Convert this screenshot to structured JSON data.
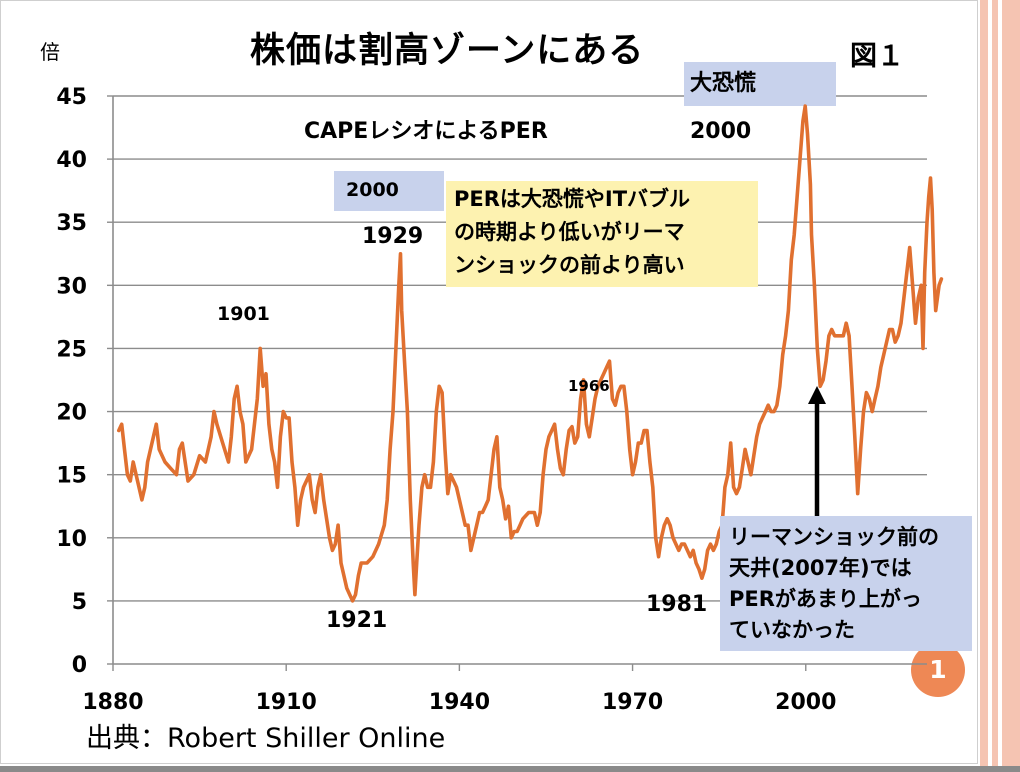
{
  "slide": {
    "title": "株価は割高ゾーンにある",
    "figure_label": "図１",
    "unit_label": "倍",
    "source": "出典：Robert Shiller Online",
    "page_number": "1",
    "colors": {
      "line": "#e07030",
      "callout_blue": "#c8d2ec",
      "callout_yellow": "#fdf2b0",
      "page_badge": "#ee8855",
      "accent_stripe": "#f5c4b2"
    }
  },
  "chart_data": {
    "type": "line",
    "title": "CAPEレシオによるPER",
    "xlabel": "",
    "ylabel": "倍",
    "xlim": [
      1880,
      2021
    ],
    "ylim": [
      0,
      45
    ],
    "x_ticks": [
      {
        "value": 1880,
        "label": "1880"
      },
      {
        "value": 1910,
        "label": "1910"
      },
      {
        "value": 1940,
        "label": "1940"
      },
      {
        "value": 1970,
        "label": "1970"
      },
      {
        "value": 2000,
        "label": "2000"
      }
    ],
    "y_ticks": [
      {
        "value": 0,
        "label": "0"
      },
      {
        "value": 5,
        "label": "5"
      },
      {
        "value": 10,
        "label": "10"
      },
      {
        "value": 15,
        "label": "15"
      },
      {
        "value": 20,
        "label": "20"
      },
      {
        "value": 25,
        "label": "25"
      },
      {
        "value": 30,
        "label": "30"
      },
      {
        "value": 35,
        "label": "35"
      },
      {
        "value": 40,
        "label": "40"
      },
      {
        "value": 45,
        "label": "45"
      }
    ],
    "grid": true,
    "series": [
      {
        "color": "#e07030",
        "points": [
          [
            1881,
            18.5
          ],
          [
            1881.5,
            19
          ],
          [
            1882,
            17
          ],
          [
            1882.5,
            15
          ],
          [
            1883,
            14.5
          ],
          [
            1883.5,
            16
          ],
          [
            1884,
            15
          ],
          [
            1885,
            13
          ],
          [
            1885.5,
            14
          ],
          [
            1886,
            16
          ],
          [
            1887,
            18
          ],
          [
            1887.5,
            19
          ],
          [
            1888,
            17
          ],
          [
            1889,
            16
          ],
          [
            1890,
            15.5
          ],
          [
            1891,
            15
          ],
          [
            1891.5,
            17
          ],
          [
            1892,
            17.5
          ],
          [
            1893,
            14.5
          ],
          [
            1894,
            15
          ],
          [
            1895,
            16.5
          ],
          [
            1896,
            16
          ],
          [
            1897,
            18
          ],
          [
            1897.5,
            20
          ],
          [
            1898,
            19
          ],
          [
            1899,
            17.5
          ],
          [
            1900,
            16
          ],
          [
            1900.5,
            18
          ],
          [
            1901,
            21
          ],
          [
            1901.5,
            22
          ],
          [
            1902,
            20
          ],
          [
            1902.5,
            19
          ],
          [
            1903,
            16
          ],
          [
            1904,
            17
          ],
          [
            1905,
            21
          ],
          [
            1905.5,
            25
          ],
          [
            1906,
            22
          ],
          [
            1906.5,
            23
          ],
          [
            1907,
            19
          ],
          [
            1907.5,
            17
          ],
          [
            1908,
            16
          ],
          [
            1908.5,
            14
          ],
          [
            1909,
            18
          ],
          [
            1909.5,
            20
          ],
          [
            1910,
            19.5
          ],
          [
            1910.5,
            19.5
          ],
          [
            1911,
            16
          ],
          [
            1911.5,
            14
          ],
          [
            1912,
            11
          ],
          [
            1912.5,
            13
          ],
          [
            1913,
            14
          ],
          [
            1913.5,
            14.5
          ],
          [
            1914,
            15
          ],
          [
            1914.5,
            13
          ],
          [
            1915,
            12
          ],
          [
            1915.5,
            14
          ],
          [
            1916,
            15
          ],
          [
            1916.5,
            13
          ],
          [
            1917,
            11.5
          ],
          [
            1917.5,
            10
          ],
          [
            1918,
            9
          ],
          [
            1918.5,
            9.5
          ],
          [
            1919,
            11
          ],
          [
            1919.5,
            8
          ],
          [
            1920,
            7
          ],
          [
            1920.5,
            6
          ],
          [
            1921,
            5.5
          ],
          [
            1921.5,
            5
          ],
          [
            1922,
            5.5
          ],
          [
            1922.5,
            7
          ],
          [
            1923,
            8
          ],
          [
            1924,
            8
          ],
          [
            1925,
            8.5
          ],
          [
            1926,
            9.5
          ],
          [
            1927,
            11
          ],
          [
            1927.5,
            13
          ],
          [
            1928,
            17
          ],
          [
            1928.5,
            20
          ],
          [
            1929,
            25
          ],
          [
            1929.5,
            30
          ],
          [
            1929.8,
            32.5
          ],
          [
            1930,
            28
          ],
          [
            1930.5,
            24
          ],
          [
            1931,
            20
          ],
          [
            1931.5,
            13
          ],
          [
            1932,
            8
          ],
          [
            1932.3,
            5.5
          ],
          [
            1932.6,
            8
          ],
          [
            1933,
            11
          ],
          [
            1933.5,
            14
          ],
          [
            1934,
            15
          ],
          [
            1934.5,
            14
          ],
          [
            1935,
            14
          ],
          [
            1935.5,
            16
          ],
          [
            1936,
            20
          ],
          [
            1936.5,
            22
          ],
          [
            1937,
            21.5
          ],
          [
            1937.5,
            17
          ],
          [
            1938,
            13.5
          ],
          [
            1938.5,
            15
          ],
          [
            1939,
            14.5
          ],
          [
            1939.5,
            14
          ],
          [
            1940,
            13
          ],
          [
            1940.5,
            12
          ],
          [
            1941,
            11
          ],
          [
            1941.5,
            11
          ],
          [
            1942,
            9
          ],
          [
            1942.5,
            10
          ],
          [
            1943,
            11
          ],
          [
            1943.5,
            12
          ],
          [
            1944,
            12
          ],
          [
            1944.5,
            12.5
          ],
          [
            1945,
            13
          ],
          [
            1945.5,
            15
          ],
          [
            1946,
            17
          ],
          [
            1946.5,
            18
          ],
          [
            1947,
            14
          ],
          [
            1947.5,
            13
          ],
          [
            1948,
            11.5
          ],
          [
            1948.5,
            12.5
          ],
          [
            1949,
            10
          ],
          [
            1949.5,
            10.5
          ],
          [
            1950,
            10.5
          ],
          [
            1950.5,
            11
          ],
          [
            1951,
            11.5
          ],
          [
            1952,
            12
          ],
          [
            1953,
            12
          ],
          [
            1953.5,
            11
          ],
          [
            1954,
            12
          ],
          [
            1954.5,
            15
          ],
          [
            1955,
            17
          ],
          [
            1955.5,
            18
          ],
          [
            1956,
            18.5
          ],
          [
            1956.5,
            19
          ],
          [
            1957,
            17
          ],
          [
            1957.5,
            15.5
          ],
          [
            1958,
            15
          ],
          [
            1958.5,
            17
          ],
          [
            1959,
            18.5
          ],
          [
            1959.5,
            18.8
          ],
          [
            1960,
            17.5
          ],
          [
            1960.5,
            18
          ],
          [
            1961,
            21
          ],
          [
            1961.5,
            22.5
          ],
          [
            1962,
            19
          ],
          [
            1962.5,
            18
          ],
          [
            1963,
            19.5
          ],
          [
            1963.5,
            21
          ],
          [
            1964,
            22
          ],
          [
            1964.5,
            22.5
          ],
          [
            1965,
            23
          ],
          [
            1965.5,
            23.5
          ],
          [
            1966,
            24
          ],
          [
            1966.5,
            21
          ],
          [
            1967,
            20.5
          ],
          [
            1967.5,
            21.5
          ],
          [
            1968,
            22
          ],
          [
            1968.5,
            22
          ],
          [
            1969,
            20
          ],
          [
            1969.5,
            17
          ],
          [
            1970,
            15
          ],
          [
            1970.5,
            16
          ],
          [
            1971,
            17.5
          ],
          [
            1971.5,
            17.5
          ],
          [
            1972,
            18.5
          ],
          [
            1972.5,
            18.5
          ],
          [
            1973,
            16
          ],
          [
            1973.5,
            14
          ],
          [
            1974,
            10
          ],
          [
            1974.5,
            8.5
          ],
          [
            1975,
            10
          ],
          [
            1975.5,
            11
          ],
          [
            1976,
            11.5
          ],
          [
            1976.5,
            11
          ],
          [
            1977,
            10
          ],
          [
            1977.5,
            9.5
          ],
          [
            1978,
            9
          ],
          [
            1978.5,
            9.5
          ],
          [
            1979,
            9.5
          ],
          [
            1979.5,
            9
          ],
          [
            1980,
            8.5
          ],
          [
            1980.5,
            9
          ],
          [
            1981,
            8
          ],
          [
            1981.5,
            7.5
          ],
          [
            1982,
            6.8
          ],
          [
            1982.5,
            7.5
          ],
          [
            1983,
            9
          ],
          [
            1983.5,
            9.5
          ],
          [
            1984,
            9
          ],
          [
            1984.5,
            9.5
          ],
          [
            1985,
            10.5
          ],
          [
            1985.5,
            11
          ],
          [
            1986,
            14
          ],
          [
            1986.5,
            15
          ],
          [
            1987,
            17.5
          ],
          [
            1987.5,
            14
          ],
          [
            1988,
            13.5
          ],
          [
            1988.5,
            14
          ],
          [
            1989,
            15.5
          ],
          [
            1989.5,
            17
          ],
          [
            1990,
            16
          ],
          [
            1990.5,
            15
          ],
          [
            1991,
            16.5
          ],
          [
            1991.5,
            18
          ],
          [
            1992,
            19
          ],
          [
            1992.5,
            19.5
          ],
          [
            1993,
            20
          ],
          [
            1993.5,
            20.5
          ],
          [
            1994,
            20
          ],
          [
            1994.5,
            20
          ],
          [
            1995,
            20.5
          ],
          [
            1995.5,
            22
          ],
          [
            1996,
            24.5
          ],
          [
            1996.5,
            26
          ],
          [
            1997,
            28
          ],
          [
            1997.5,
            32
          ],
          [
            1998,
            34
          ],
          [
            1998.5,
            37
          ],
          [
            1999,
            40
          ],
          [
            1999.5,
            43
          ],
          [
            1999.9,
            44.2
          ],
          [
            2000.3,
            42
          ],
          [
            2000.8,
            38
          ],
          [
            2001,
            34
          ],
          [
            2001.5,
            30
          ],
          [
            2002,
            25
          ],
          [
            2002.5,
            22
          ],
          [
            2003,
            22.5
          ],
          [
            2003.5,
            24
          ],
          [
            2004,
            26
          ],
          [
            2004.5,
            26.5
          ],
          [
            2005,
            26
          ],
          [
            2005.5,
            26
          ],
          [
            2006,
            26
          ],
          [
            2006.5,
            26
          ],
          [
            2007,
            27
          ],
          [
            2007.5,
            26
          ],
          [
            2008,
            22
          ],
          [
            2008.5,
            18
          ],
          [
            2009,
            13.5
          ],
          [
            2009.5,
            17
          ],
          [
            2010,
            20
          ],
          [
            2010.5,
            21.5
          ],
          [
            2011,
            21
          ],
          [
            2011.5,
            20
          ],
          [
            2012,
            21
          ],
          [
            2012.5,
            22
          ],
          [
            2013,
            23.5
          ],
          [
            2013.5,
            24.5
          ],
          [
            2014,
            25.5
          ],
          [
            2014.5,
            26.5
          ],
          [
            2015,
            26.5
          ],
          [
            2015.5,
            25.5
          ],
          [
            2016,
            26
          ],
          [
            2016.5,
            27
          ],
          [
            2017,
            29
          ],
          [
            2017.5,
            31
          ],
          [
            2018,
            33
          ],
          [
            2018.5,
            30
          ],
          [
            2019,
            27
          ],
          [
            2019.5,
            29
          ],
          [
            2020,
            30
          ],
          [
            2020.3,
            25
          ],
          [
            2020.6,
            31
          ],
          [
            2021,
            35
          ],
          [
            2021.3,
            37
          ],
          [
            2021.6,
            38.5
          ],
          [
            2021.9,
            36
          ],
          [
            2022.2,
            31
          ],
          [
            2022.5,
            28
          ],
          [
            2022.8,
            29
          ],
          [
            2023.1,
            30
          ],
          [
            2023.5,
            30.5
          ]
        ]
      }
    ],
    "annotations": [
      {
        "id": "label-1901",
        "text": "1901"
      },
      {
        "id": "label-1921",
        "text": "1921"
      },
      {
        "id": "label-1929",
        "text": "1929"
      },
      {
        "id": "label-1966",
        "text": "1966"
      },
      {
        "id": "label-1981",
        "text": "1981"
      },
      {
        "id": "label-2000",
        "text": "2000"
      },
      {
        "id": "callout-great-depression",
        "text": "大恐慌"
      },
      {
        "id": "callout-it-bubble",
        "text": "ITバブル"
      },
      {
        "id": "note-yellow",
        "lines": [
          "PERは大恐慌やITバブル",
          "の時期より低いがリーマ",
          "ンショックの前より高い"
        ]
      },
      {
        "id": "note-blue",
        "lines": [
          "リーマンショック前の",
          "天井(2007年)では",
          "PERがあまり上がっ",
          "ていなかった"
        ]
      }
    ]
  }
}
